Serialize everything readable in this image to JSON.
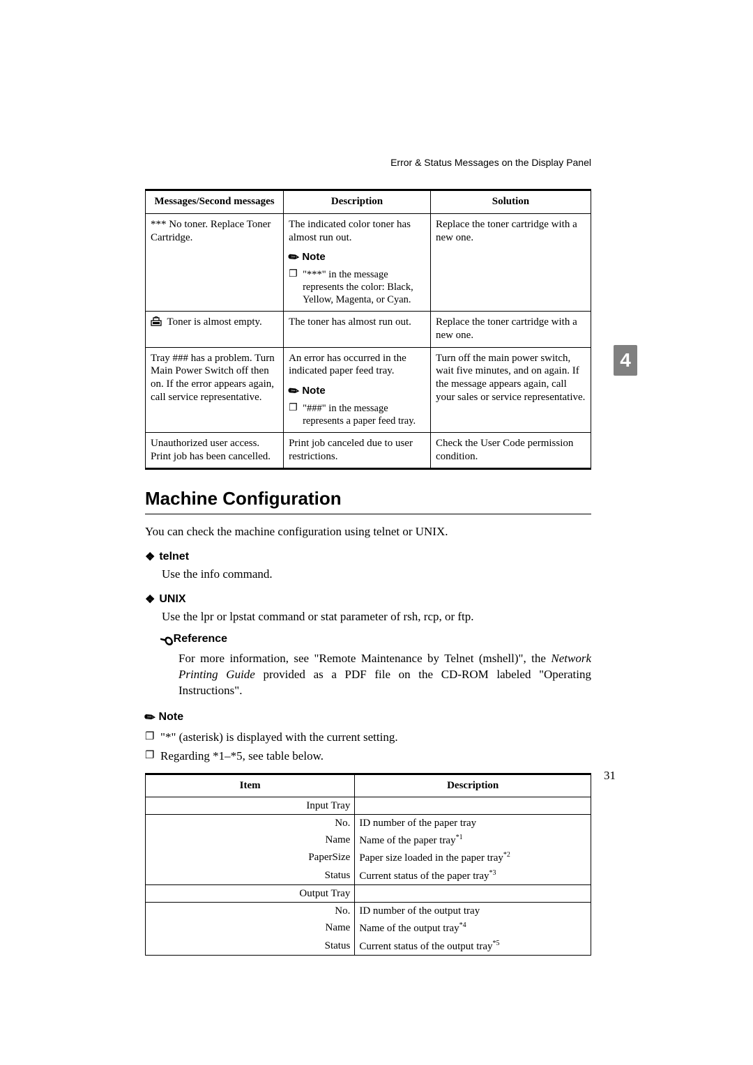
{
  "header": {
    "right": "Error & Status Messages on the Display Panel"
  },
  "errorsTable": {
    "headers": {
      "msg": "Messages/Second messages",
      "desc": "Description",
      "sol": "Solution"
    },
    "rows": [
      {
        "msg": "*** No toner. Replace Toner Cartridge.",
        "desc": "The indicated color toner has almost run out.",
        "noteLabel": "Note",
        "noteItem": "\"***\" in the message represents the color: Black, Yellow, Magenta, or Cyan.",
        "sol": "Replace the toner cartridge with a new one."
      },
      {
        "msg": "Toner is almost empty.",
        "msgHasIcon": true,
        "desc": "The toner has almost run out.",
        "sol": "Replace the toner cartridge with a new one."
      },
      {
        "msg": "Tray ### has a problem. Turn Main Power Switch off then on. If the error appears again, call service representative.",
        "desc": "An error has occurred in the indicated paper feed tray.",
        "noteLabel": "Note",
        "noteItem": "\"###\" in the message represents a paper feed tray.",
        "sol": "Turn off the main power switch, wait five minutes, and on again. If the message appears again, call your sales or service representative."
      },
      {
        "msg": "Unauthorized user access. Print job has been cancelled.",
        "desc": "Print job canceled due to user restrictions.",
        "sol": "Check the User Code permission condition."
      }
    ]
  },
  "sectionTitle": "Machine Configuration",
  "intro": "You can check the machine configuration using telnet or UNIX.",
  "subsections": {
    "telnet": {
      "title": "telnet",
      "body": "Use the info command."
    },
    "unix": {
      "title": "UNIX",
      "body": "Use the lpr or lpstat command or stat parameter of rsh, rcp, or ftp."
    },
    "reference": {
      "title": "Reference",
      "body1": "For more information, see \"Remote Maintenance by Telnet (mshell)\", the ",
      "bodyItalic": "Network Printing Guide",
      "body2": " provided as a PDF file on the CD-ROM labeled \"Operating Instructions\"."
    },
    "note": {
      "title": "Note",
      "items": [
        "\"*\" (asterisk) is displayed with the current setting.",
        "Regarding *1–*5, see table below."
      ]
    }
  },
  "cfgTable": {
    "headers": {
      "item": "Item",
      "desc": "Description"
    },
    "groups": [
      {
        "name": "Input Tray",
        "rows": [
          {
            "item": "No.",
            "desc": "ID number of the paper tray",
            "sup": ""
          },
          {
            "item": "Name",
            "desc": "Name of the paper tray",
            "sup": "*1"
          },
          {
            "item": "PaperSize",
            "desc": "Paper size loaded in the paper tray",
            "sup": "*2"
          },
          {
            "item": "Status",
            "desc": "Current status of the paper tray",
            "sup": "*3"
          }
        ]
      },
      {
        "name": "Output Tray",
        "rows": [
          {
            "item": "No.",
            "desc": "ID number of the output tray",
            "sup": ""
          },
          {
            "item": "Name",
            "desc": "Name of the output tray",
            "sup": "*4"
          },
          {
            "item": "Status",
            "desc": "Current status of the output tray",
            "sup": "*5"
          }
        ]
      }
    ]
  },
  "sideTab": "4",
  "pageNumber": "31",
  "colors": {
    "text": "#000000",
    "background": "#ffffff",
    "tabBg": "#808080",
    "tabFg": "#ffffff"
  }
}
